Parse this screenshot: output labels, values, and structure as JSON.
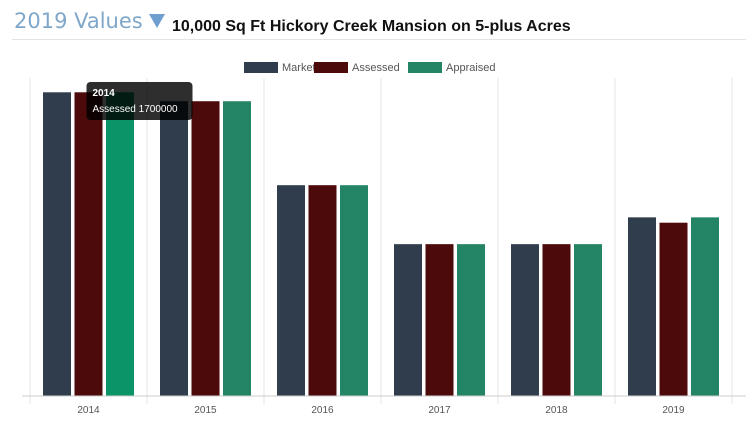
{
  "header": {
    "section_title": "2019 Values",
    "page_title": "10,000 Sq Ft Hickory Creek Mansion on 5-plus Acres",
    "dropdown_icon": "triangle-down-icon"
  },
  "chart_data": {
    "type": "bar",
    "categories": [
      "2014",
      "2015",
      "2016",
      "2017",
      "2018",
      "2019"
    ],
    "series": [
      {
        "name": "Market",
        "color": "#2f3d4c",
        "values": [
          1700000,
          1650000,
          1180000,
          850000,
          850000,
          1000000
        ]
      },
      {
        "name": "Assessed",
        "color": "#4d0a0a",
        "values": [
          1700000,
          1650000,
          1180000,
          850000,
          850000,
          970000
        ]
      },
      {
        "name": "Appraised",
        "color": "#238566",
        "values": [
          1700000,
          1650000,
          1180000,
          850000,
          850000,
          1000000
        ]
      }
    ],
    "ylim": [
      0,
      1780000
    ],
    "grid": {
      "vertical": true,
      "horizontal": false
    },
    "legend": "top-center",
    "tooltip": {
      "category": "2014",
      "series": "Assessed",
      "label": "2014",
      "text": "Assessed  1700000"
    },
    "highlight_color": "#0b9468"
  }
}
